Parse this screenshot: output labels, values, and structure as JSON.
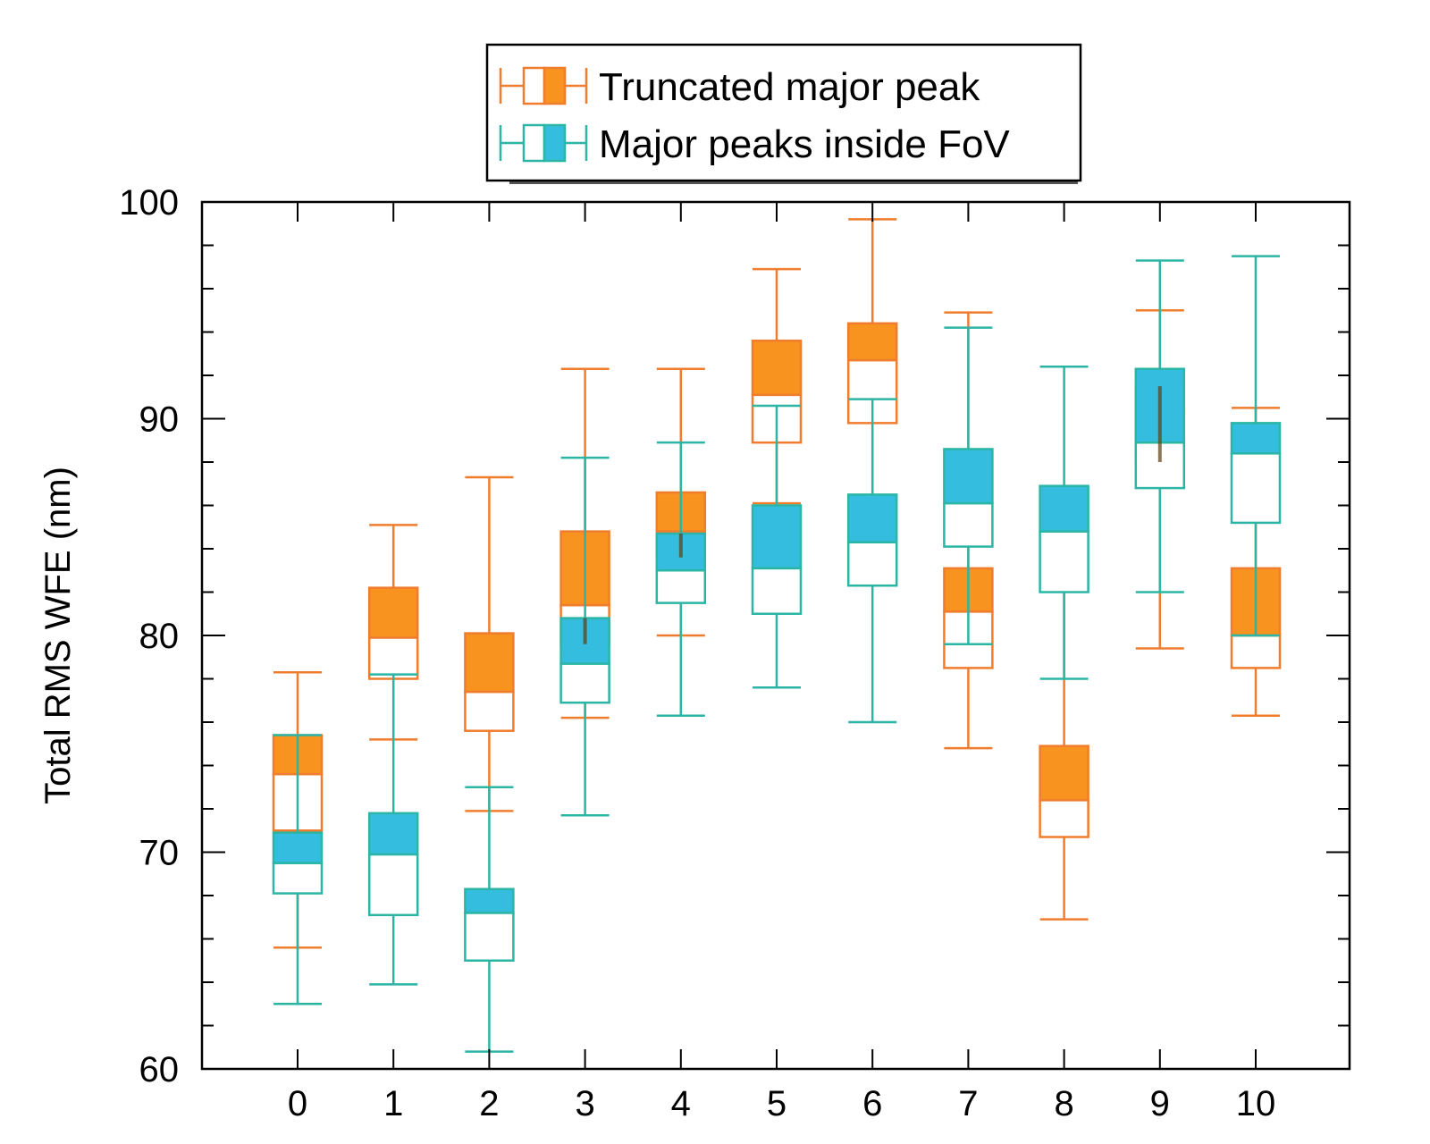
{
  "chart_data": {
    "type": "box",
    "title": "",
    "xlabel": "",
    "ylabel": "Total RMS WFE (nm)",
    "ylim": [
      60,
      100
    ],
    "y_major_ticks": [
      "60",
      "70",
      "80",
      "90",
      "100"
    ],
    "categories": [
      "0",
      "1",
      "2",
      "3",
      "4",
      "5",
      "6",
      "7",
      "8",
      "9",
      "10"
    ],
    "legend_position": "top-center",
    "colors": {
      "truncated_edge": "#f07d2e",
      "truncated_fill": "#f7931e",
      "inside_edge": "#2bb5a5",
      "inside_fill": "#35bde0",
      "overlap_fill": "#5c3f12"
    },
    "series": [
      {
        "name": "Truncated major peak",
        "legend_icon": "hollow-then-filled-box-orange-icon",
        "boxes": [
          {
            "whisker_low": 65.6,
            "q1": 71.0,
            "median": 73.6,
            "q3": 75.4,
            "whisker_high": 78.3
          },
          {
            "whisker_low": 75.2,
            "q1": 78.0,
            "median": 79.9,
            "q3": 82.2,
            "whisker_high": 85.1
          },
          {
            "whisker_low": 71.9,
            "q1": 75.6,
            "median": 77.4,
            "q3": 80.1,
            "whisker_high": 87.3
          },
          {
            "whisker_low": 76.2,
            "q1": 79.6,
            "median": 81.4,
            "q3": 84.8,
            "whisker_high": 92.3
          },
          {
            "whisker_low": 80.0,
            "q1": 83.6,
            "median": 84.8,
            "q3": 86.6,
            "whisker_high": 92.3
          },
          {
            "whisker_low": 86.1,
            "q1": 88.9,
            "median": 91.1,
            "q3": 93.6,
            "whisker_high": 96.9
          },
          {
            "whisker_low": 86.0,
            "q1": 89.8,
            "median": 92.7,
            "q3": 94.4,
            "whisker_high": 99.2
          },
          {
            "whisker_low": 74.8,
            "q1": 78.5,
            "median": 81.1,
            "q3": 83.1,
            "whisker_high": 94.9
          },
          {
            "whisker_low": 66.9,
            "q1": 70.7,
            "median": 72.4,
            "q3": 74.9,
            "whisker_high": 82.1
          },
          {
            "whisker_low": 79.4,
            "q1": 88.0,
            "median": 90.3,
            "q3": 91.5,
            "whisker_high": 95.0
          },
          {
            "whisker_low": 76.3,
            "q1": 78.5,
            "median": 80.0,
            "q3": 83.1,
            "whisker_high": 90.5
          }
        ]
      },
      {
        "name": "Major peaks inside FoV",
        "legend_icon": "hollow-then-filled-box-cyan-icon",
        "boxes": [
          {
            "whisker_low": 63.0,
            "q1": 68.1,
            "median": 69.5,
            "q3": 70.9,
            "whisker_high": 75.4
          },
          {
            "whisker_low": 63.9,
            "q1": 67.1,
            "median": 69.9,
            "q3": 71.8,
            "whisker_high": 78.2
          },
          {
            "whisker_low": 60.8,
            "q1": 65.0,
            "median": 67.2,
            "q3": 68.3,
            "whisker_high": 73.0
          },
          {
            "whisker_low": 71.7,
            "q1": 76.9,
            "median": 78.7,
            "q3": 80.8,
            "whisker_high": 88.2
          },
          {
            "whisker_low": 76.3,
            "q1": 81.5,
            "median": 83.0,
            "q3": 84.7,
            "whisker_high": 88.9
          },
          {
            "whisker_low": 77.6,
            "q1": 81.0,
            "median": 83.1,
            "q3": 86.0,
            "whisker_high": 90.6
          },
          {
            "whisker_low": 76.0,
            "q1": 82.3,
            "median": 84.3,
            "q3": 86.5,
            "whisker_high": 90.9
          },
          {
            "whisker_low": 79.6,
            "q1": 84.1,
            "median": 86.1,
            "q3": 88.6,
            "whisker_high": 94.2
          },
          {
            "whisker_low": 78.0,
            "q1": 82.0,
            "median": 84.8,
            "q3": 86.9,
            "whisker_high": 92.4
          },
          {
            "whisker_low": 82.0,
            "q1": 86.8,
            "median": 88.9,
            "q3": 92.3,
            "whisker_high": 97.3
          },
          {
            "whisker_low": 80.0,
            "q1": 85.2,
            "median": 88.4,
            "q3": 89.8,
            "whisker_high": 97.5
          }
        ]
      }
    ]
  }
}
